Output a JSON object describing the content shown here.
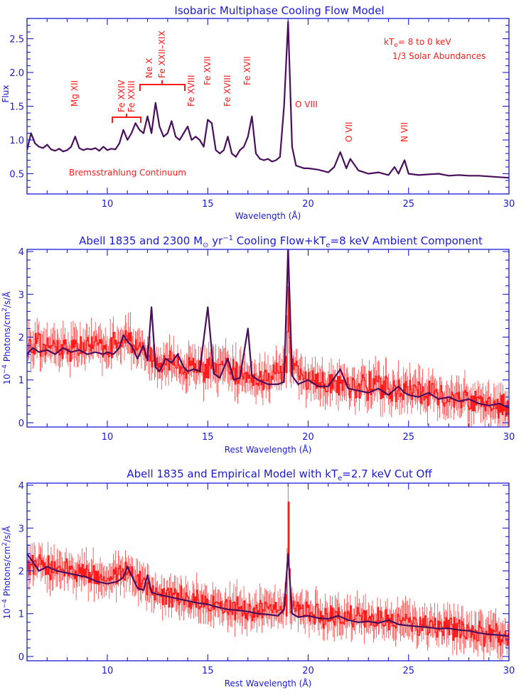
{
  "colors": {
    "axis": "#1a1ad6",
    "model": "#4a0f5c",
    "data": "#ff1a1a"
  },
  "chart_data": [
    {
      "type": "line",
      "title": "Isobaric Multiphase Cooling Flow Model",
      "xlabel": "Wavelength (Å)",
      "ylabel": "Flux",
      "xlim": [
        6,
        30
      ],
      "ylim": [
        0.2,
        2.8
      ],
      "x_ticks": [
        "10",
        "15",
        "20",
        "25",
        "30"
      ],
      "y_ticks": [
        "0.5",
        "1.0",
        "1.5",
        "2.0",
        "2.5"
      ],
      "series": [
        {
          "x": [
            6.0,
            6.2,
            6.4,
            6.6,
            6.8,
            7.0,
            7.2,
            7.4,
            7.6,
            7.8,
            8.0,
            8.2,
            8.4,
            8.6,
            8.8,
            9.0,
            9.2,
            9.4,
            9.6,
            9.8,
            10.0,
            10.2,
            10.4,
            10.6,
            10.8,
            11.0,
            11.2,
            11.4,
            11.6,
            11.8,
            12.0,
            12.2,
            12.4,
            12.6,
            12.8,
            13.0,
            13.2,
            13.4,
            13.6,
            13.8,
            14.0,
            14.2,
            14.4,
            14.6,
            14.8,
            15.0,
            15.2,
            15.4,
            15.6,
            15.8,
            16.0,
            16.2,
            16.4,
            16.6,
            16.8,
            17.0,
            17.2,
            17.4,
            17.6,
            17.8,
            18.0,
            18.2,
            18.4,
            18.6,
            18.8,
            19.0,
            19.2,
            19.4,
            19.6,
            19.8,
            20.0,
            20.5,
            21.0,
            21.3,
            21.6,
            21.9,
            22.1,
            22.5,
            23.0,
            23.5,
            24.0,
            24.3,
            24.5,
            24.8,
            25.0,
            25.5,
            26.0,
            26.5,
            27.0,
            27.5,
            28.0,
            28.5,
            29.0,
            29.5,
            30.0
          ],
          "y": [
            0.85,
            1.1,
            0.95,
            0.9,
            0.88,
            0.93,
            0.86,
            0.84,
            0.87,
            0.83,
            0.85,
            0.9,
            1.05,
            0.88,
            0.85,
            0.87,
            0.86,
            0.88,
            0.84,
            0.9,
            0.85,
            0.87,
            0.86,
            0.95,
            1.15,
            1.0,
            1.1,
            1.25,
            1.15,
            1.1,
            1.35,
            1.1,
            1.55,
            1.2,
            1.05,
            1.1,
            1.28,
            1.05,
            1.0,
            1.1,
            1.2,
            1.0,
            1.05,
            1.0,
            0.9,
            1.3,
            1.25,
            0.85,
            0.8,
            0.85,
            1.05,
            0.8,
            0.75,
            0.85,
            0.9,
            1.05,
            1.35,
            0.8,
            0.72,
            0.7,
            0.72,
            0.68,
            0.7,
            0.75,
            1.5,
            2.75,
            0.9,
            0.62,
            0.6,
            0.58,
            0.58,
            0.56,
            0.52,
            0.6,
            0.82,
            0.58,
            0.72,
            0.55,
            0.5,
            0.52,
            0.48,
            0.6,
            0.5,
            0.7,
            0.5,
            0.48,
            0.49,
            0.5,
            0.47,
            0.48,
            0.47,
            0.47,
            0.46,
            0.45,
            0.44
          ]
        }
      ],
      "annotations": [
        "Mg XII",
        "Fe XXIV",
        "Fe XXIII",
        "Ne X",
        "Fe XXII–XIX",
        "Fe XVIII",
        "Fe XVII",
        "Fe XVIII",
        "Fe XVII",
        "O VIII",
        "O VII",
        "N VII",
        "Bremsstrahlung Continuum",
        "kT",
        "e",
        "= 8 to 0 keV",
        "1/3 Solar Abundances"
      ]
    },
    {
      "type": "line",
      "title_parts": [
        "Abell 1835 and 2300 M",
        "⊙",
        " yr",
        "−1",
        " Cooling Flow+kT",
        "e",
        "=8 keV Ambient Component"
      ],
      "xlabel": "Rest Wavelength (Å)",
      "ylabel_parts": [
        "10",
        "−4",
        " Photons/cm",
        "2",
        "/s/Å"
      ],
      "xlim": [
        6,
        30
      ],
      "ylim": [
        -0.1,
        4.05
      ],
      "x_ticks": [
        "10",
        "15",
        "20",
        "25",
        "30"
      ],
      "y_ticks": [
        "0",
        "1",
        "2",
        "3",
        "4"
      ],
      "series": [
        {
          "style": "model",
          "x": [
            6.0,
            6.3,
            6.6,
            7.0,
            7.4,
            7.8,
            8.2,
            8.6,
            9.0,
            9.4,
            9.8,
            10.0,
            10.3,
            10.6,
            10.8,
            11.0,
            11.2,
            11.5,
            11.8,
            12.0,
            12.2,
            12.4,
            12.6,
            12.9,
            13.2,
            13.5,
            13.8,
            14.0,
            14.3,
            14.6,
            15.0,
            15.3,
            15.6,
            16.0,
            16.3,
            16.6,
            17.0,
            17.2,
            17.5,
            18.0,
            18.5,
            18.8,
            19.0,
            19.2,
            19.5,
            20.0,
            20.5,
            21.0,
            21.6,
            22.0,
            22.5,
            23.0,
            23.5,
            24.0,
            24.5,
            24.8,
            25.0,
            25.5,
            26.0,
            26.5,
            27.0,
            27.5,
            28.0,
            28.5,
            29.0,
            29.5,
            30.0
          ],
          "y": [
            1.6,
            1.75,
            1.65,
            1.7,
            1.6,
            1.75,
            1.65,
            1.7,
            1.6,
            1.65,
            1.6,
            1.65,
            1.6,
            1.75,
            2.05,
            1.9,
            1.8,
            1.5,
            1.8,
            1.45,
            2.7,
            1.3,
            1.2,
            1.5,
            1.4,
            1.6,
            1.3,
            1.2,
            1.25,
            1.2,
            2.7,
            1.15,
            1.05,
            1.5,
            1.0,
            1.05,
            2.2,
            1.1,
            1.0,
            0.9,
            0.9,
            0.95,
            4.1,
            1.1,
            0.9,
            1.0,
            0.85,
            0.85,
            1.25,
            0.8,
            0.75,
            0.7,
            0.8,
            0.65,
            0.85,
            0.7,
            0.65,
            0.6,
            0.7,
            0.55,
            0.6,
            0.5,
            0.55,
            0.45,
            0.4,
            0.45,
            0.35
          ]
        },
        {
          "style": "data",
          "trend_x": [
            6,
            8,
            10,
            11,
            12,
            13,
            14,
            16,
            18,
            19,
            20,
            22,
            24,
            26,
            28,
            30
          ],
          "trend_y": [
            1.8,
            1.75,
            1.8,
            2.0,
            1.55,
            1.4,
            1.3,
            1.2,
            1.05,
            1.3,
            1.0,
            0.9,
            0.8,
            0.7,
            0.5,
            0.35
          ],
          "noise": 0.32,
          "lines": [
            [
              19.0,
              1.9
            ]
          ]
        }
      ]
    },
    {
      "type": "line",
      "title_parts": [
        "Abell 1835 and Empirical Model with kT",
        "e",
        "=2.7 keV Cut Off"
      ],
      "xlabel": "Rest Wavelength (Å)",
      "ylabel_parts": [
        "10",
        "−4",
        " Photons/cm",
        "2",
        "/s/Å"
      ],
      "xlim": [
        6,
        30
      ],
      "ylim": [
        -0.1,
        4.05
      ],
      "x_ticks": [
        "10",
        "15",
        "20",
        "25",
        "30"
      ],
      "y_ticks": [
        "0",
        "1",
        "2",
        "3",
        "4"
      ],
      "series": [
        {
          "style": "model",
          "x": [
            6.0,
            6.3,
            6.6,
            7.0,
            7.5,
            8.0,
            8.5,
            9.0,
            9.5,
            10.0,
            10.5,
            10.8,
            11.0,
            11.2,
            11.5,
            11.8,
            12.0,
            12.2,
            12.5,
            13.0,
            13.5,
            14.0,
            14.5,
            15.0,
            15.5,
            16.0,
            16.5,
            17.0,
            17.5,
            18.0,
            18.5,
            18.8,
            19.0,
            19.2,
            19.5,
            20.0,
            20.5,
            21.0,
            21.5,
            22.0,
            22.5,
            23.0,
            23.5,
            24.0,
            24.5,
            25.0,
            25.5,
            26.0,
            26.5,
            27.0,
            27.5,
            28.0,
            28.5,
            29.0,
            29.5,
            30.0
          ],
          "y": [
            2.4,
            2.2,
            2.0,
            2.1,
            2.0,
            1.95,
            1.9,
            1.85,
            1.75,
            1.7,
            1.75,
            1.85,
            2.1,
            1.9,
            1.6,
            1.55,
            1.9,
            1.5,
            1.45,
            1.4,
            1.35,
            1.3,
            1.25,
            1.22,
            1.15,
            1.1,
            1.08,
            1.05,
            1.0,
            0.98,
            0.95,
            1.1,
            2.4,
            1.0,
            0.92,
            0.95,
            0.9,
            0.88,
            0.95,
            0.85,
            0.8,
            0.82,
            0.78,
            0.85,
            0.75,
            0.72,
            0.7,
            0.68,
            0.65,
            0.66,
            0.62,
            0.6,
            0.55,
            0.52,
            0.5,
            0.48
          ]
        },
        {
          "style": "data",
          "trend_x": [
            6,
            8,
            10,
            11,
            12,
            13,
            14,
            16,
            18,
            19,
            20,
            22,
            24,
            26,
            28,
            30
          ],
          "trend_y": [
            2.2,
            2.0,
            1.8,
            2.1,
            1.55,
            1.4,
            1.3,
            1.15,
            1.05,
            1.2,
            0.98,
            0.9,
            0.85,
            0.75,
            0.6,
            0.45
          ],
          "noise": 0.3,
          "lines": [
            [
              19.0,
              2.2
            ]
          ]
        }
      ]
    }
  ]
}
